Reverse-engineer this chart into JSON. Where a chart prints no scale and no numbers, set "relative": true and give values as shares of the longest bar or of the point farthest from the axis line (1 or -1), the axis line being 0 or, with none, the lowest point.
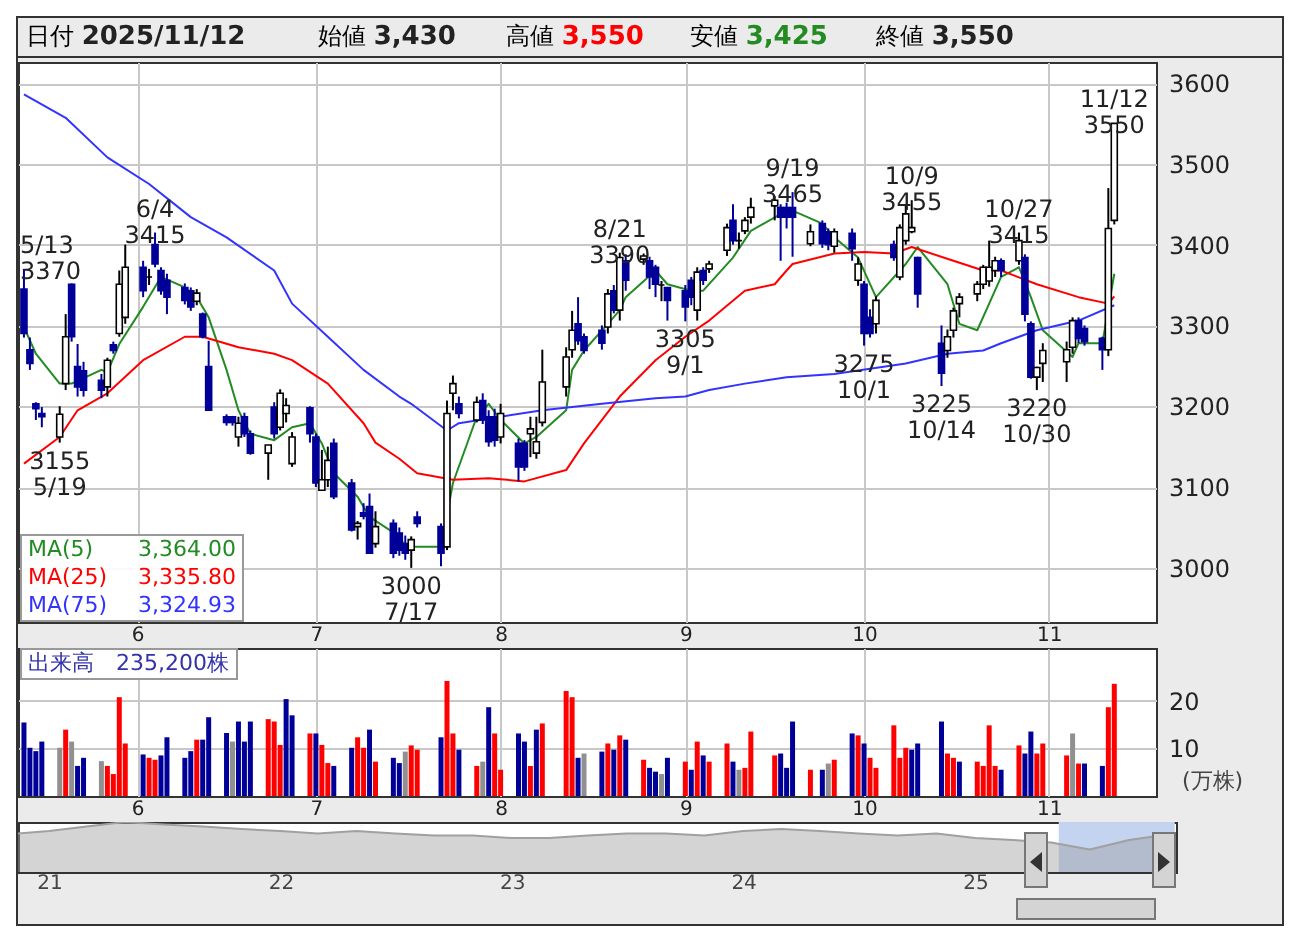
{
  "chart_data": [
    {
      "type": "candlestick",
      "x": [
        "2025-05-13",
        "2025-05-14",
        "2025-05-15",
        "2025-05-16",
        "2025-05-19",
        "2025-05-20",
        "2025-05-21",
        "2025-05-22",
        "2025-05-23",
        "2025-05-26",
        "2025-05-27",
        "2025-05-28",
        "2025-05-29",
        "2025-05-30",
        "2025-06-02",
        "2025-06-03",
        "2025-06-04",
        "2025-06-05",
        "2025-06-06",
        "2025-06-09",
        "2025-06-10",
        "2025-06-11",
        "2025-06-12",
        "2025-06-13",
        "2025-06-16",
        "2025-06-17",
        "2025-06-18",
        "2025-06-19",
        "2025-06-20",
        "2025-06-23",
        "2025-06-24",
        "2025-06-25",
        "2025-06-26",
        "2025-06-27",
        "2025-06-30",
        "2025-07-01",
        "2025-07-02",
        "2025-07-03",
        "2025-07-04",
        "2025-07-07",
        "2025-07-08",
        "2025-07-09",
        "2025-07-10",
        "2025-07-11",
        "2025-07-14",
        "2025-07-15",
        "2025-07-16",
        "2025-07-17",
        "2025-07-18",
        "2025-07-22",
        "2025-07-23",
        "2025-07-24",
        "2025-07-25",
        "2025-07-28",
        "2025-07-29",
        "2025-07-30",
        "2025-07-31",
        "2025-08-01",
        "2025-08-04",
        "2025-08-05",
        "2025-08-06",
        "2025-08-07",
        "2025-08-08",
        "2025-08-12",
        "2025-08-13",
        "2025-08-14",
        "2025-08-15",
        "2025-08-18",
        "2025-08-19",
        "2025-08-20",
        "2025-08-21",
        "2025-08-22",
        "2025-08-25",
        "2025-08-26",
        "2025-08-27",
        "2025-08-28",
        "2025-08-29",
        "2025-09-01",
        "2025-09-02",
        "2025-09-03",
        "2025-09-04",
        "2025-09-05",
        "2025-09-08",
        "2025-09-09",
        "2025-09-10",
        "2025-09-11",
        "2025-09-12",
        "2025-09-16",
        "2025-09-17",
        "2025-09-18",
        "2025-09-19",
        "2025-09-22",
        "2025-09-24",
        "2025-09-25",
        "2025-09-26",
        "2025-09-29",
        "2025-09-30",
        "2025-10-01",
        "2025-10-02",
        "2025-10-03",
        "2025-10-06",
        "2025-10-07",
        "2025-10-08",
        "2025-10-09",
        "2025-10-10",
        "2025-10-14",
        "2025-10-15",
        "2025-10-16",
        "2025-10-17",
        "2025-10-20",
        "2025-10-21",
        "2025-10-22",
        "2025-10-23",
        "2025-10-24",
        "2025-10-27",
        "2025-10-28",
        "2025-10-29",
        "2025-10-30",
        "2025-10-31",
        "2025-11-04",
        "2025-11-05",
        "2025-11-06",
        "2025-11-07",
        "2025-11-10",
        "2025-11-11",
        "2025-11-12"
      ],
      "ohlc": [
        [
          3345,
          3370,
          3285,
          3290
        ],
        [
          3270,
          3285,
          3245,
          3253
        ],
        [
          3203,
          3205,
          3183,
          3197
        ],
        [
          3191,
          3199,
          3174,
          3187
        ],
        [
          3162,
          3200,
          3155,
          3190
        ],
        [
          3228,
          3314,
          3220,
          3286
        ],
        [
          3351,
          3352,
          3280,
          3286
        ],
        [
          3249,
          3277,
          3212,
          3224
        ],
        [
          3244,
          3255,
          3212,
          3220
        ],
        [
          3232,
          3240,
          3210,
          3220
        ],
        [
          3224,
          3260,
          3212,
          3257
        ],
        [
          3276,
          3280,
          3265,
          3269
        ],
        [
          3290,
          3368,
          3286,
          3351
        ],
        [
          3310,
          3400,
          3302,
          3372
        ],
        [
          3372,
          3380,
          3335,
          3343
        ],
        [
          3360,
          3370,
          3350,
          3360
        ],
        [
          3400,
          3415,
          3372,
          3376
        ],
        [
          3368,
          3372,
          3338,
          3343
        ],
        [
          3356,
          3364,
          3314,
          3335
        ],
        [
          3347,
          3352,
          3326,
          3331
        ],
        [
          3343,
          3347,
          3318,
          3323
        ],
        [
          3330,
          3345,
          3325,
          3340
        ],
        [
          3314,
          3316,
          3284,
          3286
        ],
        [
          3249,
          3281,
          3195,
          3195
        ],
        [
          3187,
          3190,
          3176,
          3180
        ],
        [
          3187,
          3188,
          3176,
          3180
        ],
        [
          3162,
          3187,
          3150,
          3179
        ],
        [
          3187,
          3192,
          3162,
          3166
        ],
        [
          3166,
          3170,
          3140,
          3142
        ],
        [
          3142,
          3152,
          3109,
          3152
        ],
        [
          3199,
          3205,
          3160,
          3166
        ],
        [
          3174,
          3221,
          3170,
          3216
        ],
        [
          3191,
          3210,
          3180,
          3201
        ],
        [
          3129,
          3168,
          3125,
          3162
        ],
        [
          3198,
          3200,
          3155,
          3166
        ],
        [
          3162,
          3166,
          3100,
          3105
        ],
        [
          3096,
          3146,
          3096,
          3109
        ],
        [
          3109,
          3150,
          3100,
          3133
        ],
        [
          3154,
          3160,
          3085,
          3088
        ],
        [
          3105,
          3110,
          3045,
          3047
        ],
        [
          3051,
          3058,
          3035,
          3055
        ],
        [
          3068,
          3080,
          3060,
          3064
        ],
        [
          3076,
          3092,
          3018,
          3018
        ],
        [
          3030,
          3070,
          3025,
          3051
        ],
        [
          3055,
          3060,
          3012,
          3018
        ],
        [
          3043,
          3050,
          3015,
          3022
        ],
        [
          3030,
          3040,
          3010,
          3018
        ],
        [
          3022,
          3039,
          3000,
          3035
        ],
        [
          3063,
          3070,
          3050,
          3055
        ],
        [
          3051,
          3055,
          3002,
          3018
        ],
        [
          3026,
          3207,
          3022,
          3191
        ],
        [
          3216,
          3238,
          3195,
          3228
        ],
        [
          3203,
          3212,
          3185,
          3191
        ],
        [
          3183,
          3212,
          3180,
          3205
        ],
        [
          3207,
          3216,
          3178,
          3183
        ],
        [
          3187,
          3195,
          3150,
          3156
        ],
        [
          3187,
          3197,
          3150,
          3158
        ],
        [
          3162,
          3203,
          3154,
          3191
        ],
        [
          3154,
          3160,
          3107,
          3125
        ],
        [
          3154,
          3158,
          3120,
          3125
        ],
        [
          3166,
          3187,
          3137,
          3172
        ],
        [
          3142,
          3187,
          3135,
          3156
        ],
        [
          3180,
          3270,
          3175,
          3230
        ],
        [
          3224,
          3273,
          3212,
          3261
        ],
        [
          3270,
          3318,
          3260,
          3294
        ],
        [
          3302,
          3335,
          3276,
          3281
        ],
        [
          3286,
          3290,
          3265,
          3269
        ],
        [
          3294,
          3300,
          3270,
          3278
        ],
        [
          3298,
          3345,
          3290,
          3339
        ],
        [
          3343,
          3350,
          3315,
          3319
        ],
        [
          3319,
          3390,
          3306,
          3384
        ],
        [
          3380,
          3388,
          3343,
          3356
        ],
        [
          3382,
          3389,
          3375,
          3386
        ],
        [
          3380,
          3385,
          3345,
          3360
        ],
        [
          3372,
          3375,
          3335,
          3351
        ],
        [
          3350,
          3355,
          3330,
          3350
        ],
        [
          3347,
          3347,
          3306,
          3331
        ],
        [
          3343,
          3350,
          3305,
          3323
        ],
        [
          3356,
          3360,
          3325,
          3335
        ],
        [
          3319,
          3372,
          3306,
          3366
        ],
        [
          3368,
          3372,
          3350,
          3356
        ],
        [
          3370,
          3380,
          3365,
          3376
        ],
        [
          3393,
          3426,
          3386,
          3421
        ],
        [
          3430,
          3450,
          3400,
          3405
        ],
        [
          3405,
          3415,
          3395,
          3405
        ],
        [
          3417,
          3434,
          3413,
          3430
        ],
        [
          3434,
          3458,
          3426,
          3446
        ],
        [
          3448,
          3460,
          3430,
          3455
        ],
        [
          3446,
          3450,
          3380,
          3434
        ],
        [
          3446,
          3452,
          3420,
          3434
        ],
        [
          3446,
          3465,
          3385,
          3434
        ],
        [
          3401,
          3425,
          3398,
          3416
        ],
        [
          3426,
          3430,
          3396,
          3401
        ],
        [
          3416,
          3420,
          3393,
          3400
        ],
        [
          3398,
          3420,
          3390,
          3416
        ],
        [
          3414,
          3420,
          3380,
          3395
        ],
        [
          3356,
          3384,
          3349,
          3376
        ],
        [
          3351,
          3355,
          3275,
          3290
        ],
        [
          3310,
          3320,
          3285,
          3290
        ],
        [
          3302,
          3336,
          3290,
          3331
        ],
        [
          3400,
          3405,
          3380,
          3384
        ],
        [
          3360,
          3425,
          3356,
          3421
        ],
        [
          3405,
          3450,
          3400,
          3438
        ],
        [
          3416,
          3455,
          3414,
          3421
        ],
        [
          3384,
          3385,
          3322,
          3339
        ],
        [
          3278,
          3300,
          3225,
          3241
        ],
        [
          3269,
          3295,
          3260,
          3286
        ],
        [
          3294,
          3322,
          3285,
          3318
        ],
        [
          3327,
          3340,
          3310,
          3335
        ],
        [
          3339,
          3355,
          3330,
          3351
        ],
        [
          3351,
          3375,
          3345,
          3372
        ],
        [
          3355,
          3405,
          3348,
          3372
        ],
        [
          3368,
          3385,
          3360,
          3380
        ],
        [
          3380,
          3383,
          3360,
          3368
        ],
        [
          3380,
          3415,
          3375,
          3405
        ],
        [
          3384,
          3388,
          3305,
          3314
        ],
        [
          3302,
          3305,
          3234,
          3236
        ],
        [
          3236,
          3249,
          3220,
          3248
        ],
        [
          3253,
          3278,
          3230,
          3269
        ],
        [
          3255,
          3280,
          3230,
          3270
        ],
        [
          3273,
          3310,
          3265,
          3306
        ],
        [
          3306,
          3310,
          3278,
          3284
        ],
        [
          3296,
          3300,
          3275,
          3280
        ],
        [
          3284,
          3286,
          3245,
          3270
        ],
        [
          3270,
          3470,
          3262,
          3420
        ],
        [
          3430,
          3550,
          3425,
          3550
        ]
      ],
      "series": [
        {
          "name": "MA(5)",
          "type": "line",
          "color": "#228b22",
          "x": [
            "2025-05-13",
            "2025-05-15",
            "2025-05-19",
            "2025-05-21",
            "2025-05-26",
            "2025-05-27",
            "2025-05-29",
            "2025-06-02",
            "2025-06-05",
            "2025-06-09",
            "2025-06-11",
            "2025-06-13",
            "2025-06-16",
            "2025-06-18",
            "2025-06-20",
            "2025-06-24",
            "2025-06-27",
            "2025-06-30",
            "2025-07-02",
            "2025-07-04",
            "2025-07-08",
            "2025-07-10",
            "2025-07-15",
            "2025-07-16",
            "2025-07-22",
            "2025-07-24",
            "2025-07-28",
            "2025-07-30",
            "2025-08-01",
            "2025-08-05",
            "2025-08-07",
            "2025-08-12",
            "2025-08-13",
            "2025-08-15",
            "2025-08-19",
            "2025-08-21",
            "2025-08-22",
            "2025-08-27",
            "2025-08-29",
            "2025-09-02",
            "2025-09-04",
            "2025-09-09",
            "2025-09-12",
            "2025-09-18",
            "2025-09-19",
            "2025-09-24",
            "2025-09-26",
            "2025-09-30",
            "2025-10-03",
            "2025-10-08",
            "2025-10-10",
            "2025-10-15",
            "2025-10-17",
            "2025-10-20",
            "2025-10-22",
            "2025-10-24",
            "2025-10-27",
            "2025-10-29",
            "2025-10-31",
            "2025-11-05",
            "2025-11-06",
            "2025-11-10",
            "2025-11-12"
          ],
          "values": [
            3298,
            3265,
            3228,
            3228,
            3245,
            3242,
            3277,
            3323,
            3360,
            3347,
            3335,
            3310,
            3245,
            3195,
            3166,
            3158,
            3174,
            3179,
            3154,
            3117,
            3088,
            3063,
            3039,
            3026,
            3026,
            3105,
            3187,
            3203,
            3183,
            3154,
            3162,
            3195,
            3245,
            3269,
            3302,
            3319,
            3335,
            3368,
            3351,
            3343,
            3343,
            3384,
            3417,
            3442,
            3442,
            3426,
            3409,
            3384,
            3335,
            3376,
            3397,
            3351,
            3302,
            3294,
            3327,
            3360,
            3372,
            3335,
            3294,
            3261,
            3278,
            3278,
            3364
          ]
        },
        {
          "name": "MA(25)",
          "type": "line",
          "color": "#ff0000",
          "x": [
            "2025-05-13",
            "2025-05-19",
            "2025-05-22",
            "2025-05-27",
            "2025-06-02",
            "2025-06-09",
            "2025-06-12",
            "2025-06-18",
            "2025-06-24",
            "2025-06-27",
            "2025-07-03",
            "2025-07-09",
            "2025-07-11",
            "2025-07-15",
            "2025-07-18",
            "2025-07-24",
            "2025-07-30",
            "2025-08-05",
            "2025-08-12",
            "2025-08-15",
            "2025-08-21",
            "2025-08-27",
            "2025-09-01",
            "2025-09-05",
            "2025-09-11",
            "2025-09-16",
            "2025-09-18",
            "2025-09-19",
            "2025-09-26",
            "2025-10-01",
            "2025-10-06",
            "2025-10-09",
            "2025-10-16",
            "2025-10-21",
            "2025-10-24",
            "2025-10-30",
            "2025-11-06",
            "2025-11-11",
            "2025-11-12"
          ],
          "values": [
            3129,
            3162,
            3195,
            3216,
            3257,
            3286,
            3286,
            3273,
            3265,
            3257,
            3228,
            3179,
            3155,
            3135,
            3117,
            3109,
            3111,
            3107,
            3121,
            3154,
            3212,
            3257,
            3286,
            3306,
            3343,
            3351,
            3368,
            3376,
            3389,
            3391,
            3389,
            3397,
            3380,
            3368,
            3368,
            3351,
            3335,
            3327,
            3336
          ]
        },
        {
          "name": "MA(75)",
          "type": "line",
          "color": "#3333ff",
          "x": [
            "2025-05-13",
            "2025-05-20",
            "2025-05-27",
            "2025-06-03",
            "2025-06-10",
            "2025-06-16",
            "2025-06-24",
            "2025-06-27",
            "2025-07-03",
            "2025-07-09",
            "2025-07-15",
            "2025-07-17",
            "2025-07-23",
            "2025-07-25",
            "2025-08-01",
            "2025-08-08",
            "2025-08-18",
            "2025-08-27",
            "2025-09-01",
            "2025-09-05",
            "2025-09-11",
            "2025-09-18",
            "2025-09-26",
            "2025-10-08",
            "2025-10-15",
            "2025-10-21",
            "2025-10-24",
            "2025-10-30",
            "2025-11-06",
            "2025-11-12"
          ],
          "values": [
            3586,
            3557,
            3508,
            3475,
            3434,
            3409,
            3368,
            3327,
            3286,
            3245,
            3212,
            3203,
            3170,
            3179,
            3187,
            3195,
            3203,
            3210,
            3212,
            3220,
            3228,
            3236,
            3240,
            3253,
            3265,
            3269,
            3278,
            3294,
            3306,
            3325
          ]
        }
      ],
      "xlim": [
        "2025-05-12",
        "2025-11-19"
      ],
      "xticks": [
        {
          "value": "2025-06-01",
          "label": "6"
        },
        {
          "value": "2025-07-01",
          "label": "7"
        },
        {
          "value": "2025-08-01",
          "label": "8"
        },
        {
          "value": "2025-09-01",
          "label": "9"
        },
        {
          "value": "2025-10-01",
          "label": "10"
        },
        {
          "value": "2025-11-01",
          "label": "11"
        }
      ],
      "ylim": [
        2933,
        3626
      ],
      "yticks": [
        3000,
        3100,
        3200,
        3300,
        3400,
        3500,
        3600
      ],
      "grid": true,
      "legend": "bottom left",
      "annotations": [
        "日付 2025/11/12",
        "始値 3,430",
        "高値 3,550",
        "安値 3,425",
        "終値 3,550",
        "3,364.00",
        "3,335.80",
        "3,324.93",
        {
          "text": "5/13\n3370",
          "x": "2025-05-13",
          "y": 3370
        },
        {
          "text": "3155\n5/19",
          "x": "2025-05-19",
          "y": 3155
        },
        {
          "text": "6/4\n3415",
          "x": "2025-06-04",
          "y": 3415
        },
        {
          "text": "3000\n7/17",
          "x": "2025-07-17",
          "y": 3000
        },
        {
          "text": "8/21\n3390",
          "x": "2025-08-21",
          "y": 3390
        },
        {
          "text": "3305\n9/1",
          "x": "2025-09-01",
          "y": 3305
        },
        {
          "text": "9/19\n3465",
          "x": "2025-09-19",
          "y": 3465
        },
        {
          "text": "3275\n10/1",
          "x": "2025-10-01",
          "y": 3275
        },
        {
          "text": "10/9\n3455",
          "x": "2025-10-09",
          "y": 3455
        },
        {
          "text": "3225\n10/14",
          "x": "2025-10-14",
          "y": 3225
        },
        {
          "text": "10/27\n3415",
          "x": "2025-10-27",
          "y": 3415
        },
        {
          "text": "3220\n10/30",
          "x": "2025-10-30",
          "y": 3220
        },
        {
          "text": "11/12\n3550",
          "x": "2025-11-12",
          "y": 3550
        }
      ]
    },
    {
      "type": "bar",
      "title": "出来高　235,200株",
      "ylabel": "(万株)",
      "x": [
        "2025-05-13",
        "2025-05-14",
        "2025-05-15",
        "2025-05-16",
        "2025-05-19",
        "2025-05-20",
        "2025-05-21",
        "2025-05-22",
        "2025-05-23",
        "2025-05-26",
        "2025-05-27",
        "2025-05-28",
        "2025-05-29",
        "2025-05-30",
        "2025-06-02",
        "2025-06-03",
        "2025-06-04",
        "2025-06-05",
        "2025-06-06",
        "2025-06-09",
        "2025-06-10",
        "2025-06-11",
        "2025-06-12",
        "2025-06-13",
        "2025-06-16",
        "2025-06-17",
        "2025-06-18",
        "2025-06-19",
        "2025-06-20",
        "2025-06-23",
        "2025-06-24",
        "2025-06-25",
        "2025-06-26",
        "2025-06-27",
        "2025-06-30",
        "2025-07-01",
        "2025-07-02",
        "2025-07-03",
        "2025-07-04",
        "2025-07-07",
        "2025-07-08",
        "2025-07-09",
        "2025-07-10",
        "2025-07-11",
        "2025-07-14",
        "2025-07-15",
        "2025-07-16",
        "2025-07-17",
        "2025-07-18",
        "2025-07-22",
        "2025-07-23",
        "2025-07-24",
        "2025-07-25",
        "2025-07-28",
        "2025-07-29",
        "2025-07-30",
        "2025-07-31",
        "2025-08-01",
        "2025-08-04",
        "2025-08-05",
        "2025-08-06",
        "2025-08-07",
        "2025-08-08",
        "2025-08-12",
        "2025-08-13",
        "2025-08-14",
        "2025-08-15",
        "2025-08-18",
        "2025-08-19",
        "2025-08-20",
        "2025-08-21",
        "2025-08-22",
        "2025-08-25",
        "2025-08-26",
        "2025-08-27",
        "2025-08-28",
        "2025-08-29",
        "2025-09-01",
        "2025-09-02",
        "2025-09-03",
        "2025-09-04",
        "2025-09-05",
        "2025-09-08",
        "2025-09-09",
        "2025-09-10",
        "2025-09-11",
        "2025-09-12",
        "2025-09-16",
        "2025-09-17",
        "2025-09-18",
        "2025-09-19",
        "2025-09-22",
        "2025-09-24",
        "2025-09-25",
        "2025-09-26",
        "2025-09-29",
        "2025-09-30",
        "2025-10-01",
        "2025-10-02",
        "2025-10-03",
        "2025-10-06",
        "2025-10-07",
        "2025-10-08",
        "2025-10-09",
        "2025-10-10",
        "2025-10-14",
        "2025-10-15",
        "2025-10-16",
        "2025-10-17",
        "2025-10-20",
        "2025-10-21",
        "2025-10-22",
        "2025-10-23",
        "2025-10-24",
        "2025-10-27",
        "2025-10-28",
        "2025-10-29",
        "2025-10-30",
        "2025-10-31",
        "2025-11-04",
        "2025-11-05",
        "2025-11-06",
        "2025-11-07",
        "2025-11-10",
        "2025-11-11",
        "2025-11-12"
      ],
      "values": [
        15.4,
        10.1,
        9.4,
        11.4,
        10.1,
        13.9,
        11.4,
        6.3,
        8.0,
        7.3,
        6.3,
        4.6,
        20.7,
        11.0,
        8.7,
        8.0,
        7.6,
        8.5,
        12.3,
        8.0,
        9.4,
        11.8,
        11.8,
        16.5,
        13.2,
        11.4,
        15.6,
        11.4,
        15.6,
        16.1,
        15.6,
        10.7,
        20.3,
        16.9,
        13.1,
        13.1,
        10.7,
        6.9,
        6.3,
        10.1,
        12.3,
        10.1,
        13.9,
        7.2,
        8.0,
        6.9,
        9.3,
        10.6,
        9.7,
        12.3,
        24.1,
        13.1,
        9.7,
        6.3,
        7.2,
        18.6,
        13.1,
        5.5,
        13.1,
        11.4,
        6.3,
        13.9,
        15.2,
        22.0,
        20.7,
        8.0,
        8.9,
        9.3,
        11.0,
        9.7,
        12.7,
        11.8,
        7.6,
        5.9,
        5.1,
        4.6,
        8.0,
        7.2,
        5.5,
        11.4,
        8.5,
        7.2,
        11.0,
        7.2,
        5.5,
        5.9,
        13.5,
        8.5,
        8.9,
        5.9,
        15.6,
        5.5,
        5.5,
        6.8,
        7.6,
        13.1,
        12.7,
        11.0,
        8.0,
        5.9,
        14.8,
        8.0,
        10.1,
        9.7,
        11.0,
        15.6,
        8.9,
        8.0,
        7.2,
        7.2,
        6.3,
        14.8,
        6.3,
        5.5,
        10.6,
        8.9,
        13.5,
        8.9,
        11.0,
        8.5,
        13.1,
        6.8,
        6.8,
        6.3,
        18.6,
        23.5
      ],
      "colors": [
        "#000099",
        "#000099",
        "#000099",
        "#000099",
        "#909090",
        "#ff0000",
        "#909090",
        "#000099",
        "#000099",
        "#909090",
        "#ff0000",
        "#ff0000",
        "#ff0000",
        "#ff0000",
        "#000099",
        "#ff0000",
        "#ff0000",
        "#000099",
        "#000099",
        "#000099",
        "#000099",
        "#ff0000",
        "#000099",
        "#000099",
        "#000099",
        "#909090",
        "#000099",
        "#000099",
        "#000099",
        "#ff0000",
        "#ff0000",
        "#ff0000",
        "#000099",
        "#000099",
        "#ff0000",
        "#000099",
        "#ff0000",
        "#ff0000",
        "#000099",
        "#000099",
        "#ff0000",
        "#ff0000",
        "#000099",
        "#ff0000",
        "#000099",
        "#000099",
        "#909090",
        "#ff0000",
        "#ff0000",
        "#000099",
        "#ff0000",
        "#ff0000",
        "#000099",
        "#ff0000",
        "#909090",
        "#000099",
        "#ff0000",
        "#ff0000",
        "#000099",
        "#000099",
        "#ff0000",
        "#000099",
        "#ff0000",
        "#ff0000",
        "#ff0000",
        "#000099",
        "#909090",
        "#000099",
        "#ff0000",
        "#000099",
        "#ff0000",
        "#000099",
        "#ff0000",
        "#000099",
        "#000099",
        "#909090",
        "#000099",
        "#ff0000",
        "#000099",
        "#ff0000",
        "#000099",
        "#ff0000",
        "#ff0000",
        "#000099",
        "#909090",
        "#ff0000",
        "#ff0000",
        "#ff0000",
        "#000099",
        "#000099",
        "#000099",
        "#ff0000",
        "#000099",
        "#909090",
        "#ff0000",
        "#000099",
        "#ff0000",
        "#000099",
        "#ff0000",
        "#ff0000",
        "#ff0000",
        "#ff0000",
        "#ff0000",
        "#000099",
        "#000099",
        "#000099",
        "#ff0000",
        "#ff0000",
        "#000099",
        "#ff0000",
        "#ff0000",
        "#ff0000",
        "#ff0000",
        "#000099",
        "#ff0000",
        "#000099",
        "#000099",
        "#ff0000",
        "#ff0000",
        "#ff0000",
        "#909090",
        "#ff0000",
        "#000099",
        "#000099",
        "#ff0000",
        "#ff0000"
      ],
      "xlim": [
        "2025-05-12",
        "2025-11-19"
      ],
      "xticks": [
        {
          "value": "2025-06-01",
          "label": "6"
        },
        {
          "value": "2025-07-01",
          "label": "7"
        },
        {
          "value": "2025-08-01",
          "label": "8"
        },
        {
          "value": "2025-09-01",
          "label": "9"
        },
        {
          "value": "2025-10-01",
          "label": "10"
        },
        {
          "value": "2025-11-01",
          "label": "11"
        }
      ],
      "ylim": [
        0,
        31
      ],
      "yticks": [
        10,
        20
      ],
      "grid": true
    },
    {
      "type": "area",
      "relative": true,
      "color": "#a0a0a0",
      "x": [
        "2020-11-13",
        "2021-01",
        "2021-03",
        "2021-05",
        "2021-07",
        "2021-09",
        "2021-11",
        "2022-01",
        "2022-03",
        "2022-05",
        "2022-07",
        "2022-09",
        "2022-11",
        "2023-01",
        "2023-03",
        "2023-05",
        "2023-07",
        "2023-09",
        "2023-11",
        "2024-01",
        "2024-03",
        "2024-05",
        "2024-07",
        "2024-09",
        "2024-11",
        "2025-01",
        "2025-03",
        "2025-05",
        "2025-07",
        "2025-09",
        "2025-11-12"
      ],
      "values": [
        0.77,
        0.82,
        0.91,
        1,
        0.95,
        0.91,
        0.86,
        0.82,
        0.77,
        0.82,
        0.77,
        0.73,
        0.73,
        0.68,
        0.68,
        0.73,
        0.77,
        0.77,
        0.73,
        0.82,
        0.86,
        0.82,
        0.77,
        0.73,
        0.77,
        0.68,
        0.64,
        0.59,
        0.45,
        0.64,
        0.77
      ],
      "xlim": [
        "2020-11-13",
        "2025-11-14"
      ],
      "xticks": [
        {
          "value": "2021-01-01",
          "label": "21"
        },
        {
          "value": "2022-01-01",
          "label": "22"
        },
        {
          "value": "2023-01-01",
          "label": "23"
        },
        {
          "value": "2024-01-01",
          "label": "24"
        },
        {
          "value": "2025-01-01",
          "label": "25"
        }
      ],
      "bands": [
        {
          "axis": "x",
          "from": "2025-05-13",
          "to": "2025-11-12",
          "color": "#c4d4f0"
        }
      ]
    }
  ]
}
